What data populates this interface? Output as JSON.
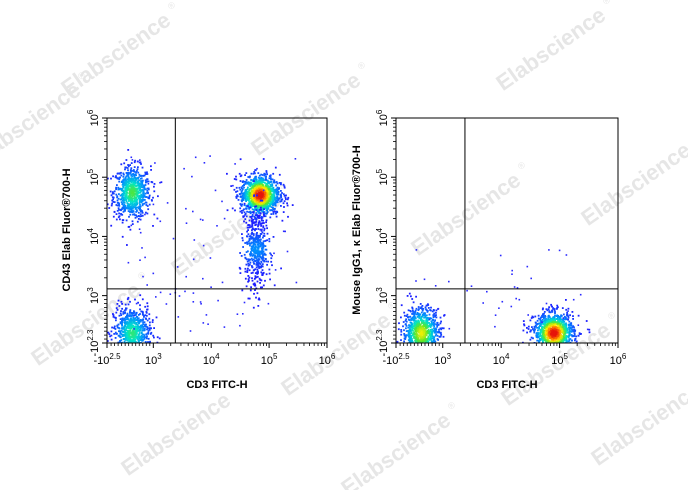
{
  "watermark": {
    "text": "Elabscience",
    "mark": "®"
  },
  "colors": {
    "ink": "#000000",
    "watermark": "#e6e6e6"
  },
  "chart_data": [
    {
      "type": "scatter",
      "style": "density-pseudocolor",
      "xlabel": "CD3 FITC-H",
      "ylabel": "CD43 Elab Fluor®700-H",
      "x_scale": "biexponential",
      "y_scale": "biexponential",
      "xlim": [
        -316,
        1000000
      ],
      "ylim": [
        -200,
        1000000
      ],
      "x_ticks": [
        {
          "base": "-10",
          "exp": "2.5",
          "value": -316
        },
        {
          "base": "10",
          "exp": "3",
          "value": 1000
        },
        {
          "base": "10",
          "exp": "4",
          "value": 10000
        },
        {
          "base": "10",
          "exp": "5",
          "value": 100000
        },
        {
          "base": "10",
          "exp": "6",
          "value": 1000000
        }
      ],
      "y_ticks": [
        {
          "base": "-10",
          "exp": "2.3",
          "value": -200
        },
        {
          "base": "10",
          "exp": "3",
          "value": 1000
        },
        {
          "base": "10",
          "exp": "4",
          "value": 10000
        },
        {
          "base": "10",
          "exp": "5",
          "value": 100000
        },
        {
          "base": "10",
          "exp": "6",
          "value": 1000000
        }
      ],
      "quadrant_gates": {
        "x": 2400,
        "y": 1300
      },
      "populations": [
        {
          "x": 400,
          "y": 55000,
          "relative_density": 0.55
        },
        {
          "x": 400,
          "y": 50,
          "relative_density": 0.5
        },
        {
          "x": 70000,
          "y": 50000,
          "relative_density": 1.0
        },
        {
          "x": 60000,
          "y": 6000,
          "relative_density": 0.25
        }
      ],
      "grid": false
    },
    {
      "type": "scatter",
      "style": "density-pseudocolor",
      "xlabel": "CD3 FITC-H",
      "ylabel": "Mouse IgG1, κ Elab Fluor®700-H",
      "x_scale": "biexponential",
      "y_scale": "biexponential",
      "xlim": [
        -316,
        1000000
      ],
      "ylim": [
        -200,
        1000000
      ],
      "x_ticks": [
        {
          "base": "-10",
          "exp": "2.5",
          "value": -316
        },
        {
          "base": "10",
          "exp": "3",
          "value": 1000
        },
        {
          "base": "10",
          "exp": "4",
          "value": 10000
        },
        {
          "base": "10",
          "exp": "5",
          "value": 100000
        },
        {
          "base": "10",
          "exp": "6",
          "value": 1000000
        }
      ],
      "y_ticks": [
        {
          "base": "-10",
          "exp": "2.3",
          "value": -200
        },
        {
          "base": "10",
          "exp": "3",
          "value": 1000
        },
        {
          "base": "10",
          "exp": "4",
          "value": 10000
        },
        {
          "base": "10",
          "exp": "5",
          "value": 100000
        },
        {
          "base": "10",
          "exp": "6",
          "value": 1000000
        }
      ],
      "quadrant_gates": {
        "x": 2400,
        "y": 1300
      },
      "populations": [
        {
          "x": 400,
          "y": 50,
          "relative_density": 0.7
        },
        {
          "x": 80000,
          "y": 50,
          "relative_density": 1.0
        }
      ],
      "grid": false
    }
  ]
}
